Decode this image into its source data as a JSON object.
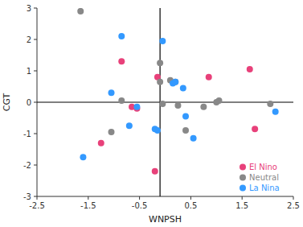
{
  "chart_data": {
    "type": "scatter",
    "xlabel": "WNPSH",
    "ylabel": "CGT",
    "series": [
      {
        "name": "El Nino",
        "color": "#e8417a",
        "x": [
          -0.85,
          -1.25,
          -0.65,
          -0.55,
          -0.2,
          -0.15,
          1.65,
          1.75,
          0.85
        ],
        "values": [
          1.3,
          -1.3,
          -0.15,
          -0.2,
          -2.2,
          0.8,
          1.05,
          -0.85,
          0.8
        ]
      },
      {
        "name": "Neutral",
        "color": "#888888",
        "x": [
          -1.65,
          -1.05,
          -0.85,
          -0.1,
          -0.05,
          0.1,
          0.2,
          0.25,
          0.4,
          0.75,
          1.05,
          1.0,
          2.05,
          -0.1
        ],
        "values": [
          2.9,
          -0.95,
          0.05,
          0.65,
          -0.05,
          0.7,
          0.65,
          -0.1,
          -0.9,
          -0.15,
          0.05,
          0.0,
          -0.05,
          1.25
        ]
      },
      {
        "name": "La Nina",
        "color": "#3399ff",
        "x": [
          -1.6,
          -1.05,
          -0.85,
          -0.7,
          -0.55,
          -0.2,
          -0.15,
          -0.05,
          0.15,
          0.2,
          0.35,
          0.55,
          2.15,
          0.4
        ],
        "values": [
          -1.75,
          0.3,
          2.1,
          -0.75,
          -0.15,
          -0.85,
          -0.9,
          1.95,
          0.6,
          0.65,
          0.45,
          -1.15,
          -0.3,
          -0.45
        ]
      }
    ],
    "xlim": [
      -2.5,
      2.5
    ],
    "ylim": [
      -3,
      3
    ],
    "xticks": [
      -2.5,
      -1.5,
      -0.5,
      0.5,
      1.5,
      2.5
    ],
    "yticks": [
      -3,
      -2,
      -1,
      0,
      1,
      2,
      3
    ],
    "hline": 0.0,
    "vline": -0.1,
    "legend": "lower right",
    "grid": false
  }
}
